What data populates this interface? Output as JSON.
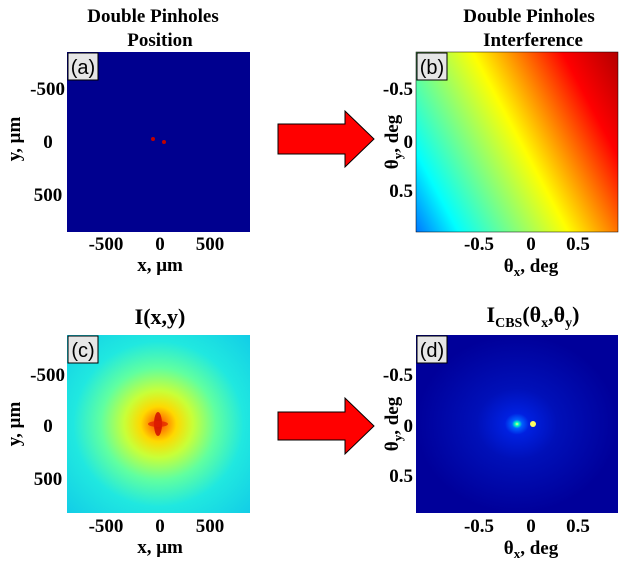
{
  "panels": [
    {
      "id": "a",
      "panel_label": "(a)",
      "title_line1": "Double Pinholes",
      "title_line2": "Position",
      "x_axis_label": "x, μm",
      "y_axis_label": "y, μm",
      "x_ticks": [
        "-500",
        "0",
        "500"
      ],
      "y_ticks": [
        "-500",
        "0",
        "500"
      ],
      "colormap": "jet",
      "background_color": "#00008f"
    },
    {
      "id": "b",
      "panel_label": "(b)",
      "title_line1": "Double Pinholes",
      "title_line2": "Interference",
      "x_axis_label_symbol": "θ",
      "x_axis_label_sub": "x",
      "x_axis_label_rest": ", deg",
      "y_axis_label_symbol": "θ",
      "y_axis_label_sub": "y",
      "y_axis_label_rest": ", deg",
      "x_ticks": [
        "-0.5",
        "0",
        "0.5"
      ],
      "y_ticks": [
        "-0.5",
        "0",
        "0.5"
      ],
      "colormap": "jet"
    },
    {
      "id": "c",
      "panel_label": "(c)",
      "title": "I(x,y)",
      "x_axis_label": "x, μm",
      "y_axis_label": "y, μm",
      "x_ticks": [
        "-500",
        "0",
        "500"
      ],
      "y_ticks": [
        "-500",
        "0",
        "500"
      ],
      "colormap": "jet"
    },
    {
      "id": "d",
      "panel_label": "(d)",
      "title_main": "I",
      "title_sub": "CBS",
      "title_open": "(θ",
      "title_sub_x": "x",
      "title_comma": ",θ",
      "title_sub_y": "y",
      "title_close": ")",
      "x_axis_label_symbol": "θ",
      "x_axis_label_sub": "x",
      "x_axis_label_rest": ", deg",
      "y_axis_label_symbol": "θ",
      "y_axis_label_sub": "y",
      "y_axis_label_rest": ", deg",
      "x_ticks": [
        "-0.5",
        "0",
        "0.5"
      ],
      "y_ticks": [
        "-0.5",
        "0",
        "0.5"
      ],
      "colormap": "jet",
      "background_color": "#00009a"
    }
  ],
  "arrows": [
    {
      "from": "a",
      "to": "b",
      "color": "#ff0000"
    },
    {
      "from": "c",
      "to": "d",
      "color": "#ff0000"
    }
  ]
}
